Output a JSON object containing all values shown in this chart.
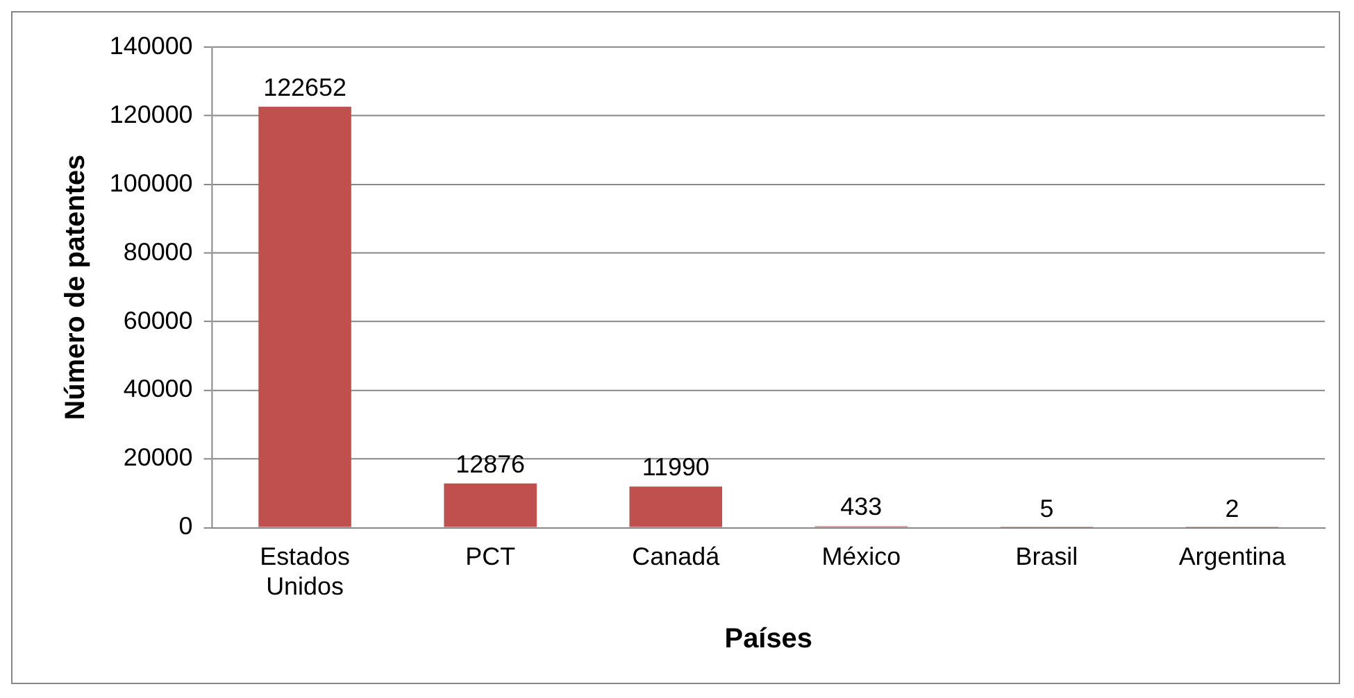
{
  "chart_data": {
    "type": "bar",
    "xlabel": "Países",
    "ylabel": "Número de patentes",
    "categories": [
      "Estados Unidos",
      "PCT",
      "Canadá",
      "México",
      "Brasil",
      "Argentina"
    ],
    "values": [
      122652,
      12876,
      11990,
      433,
      5,
      2
    ],
    "color": "#c0504d",
    "ylim": [
      0,
      140000
    ],
    "yticks": [
      0,
      20000,
      40000,
      60000,
      80000,
      100000,
      120000,
      140000
    ],
    "grid": "y",
    "data_labels": true
  }
}
